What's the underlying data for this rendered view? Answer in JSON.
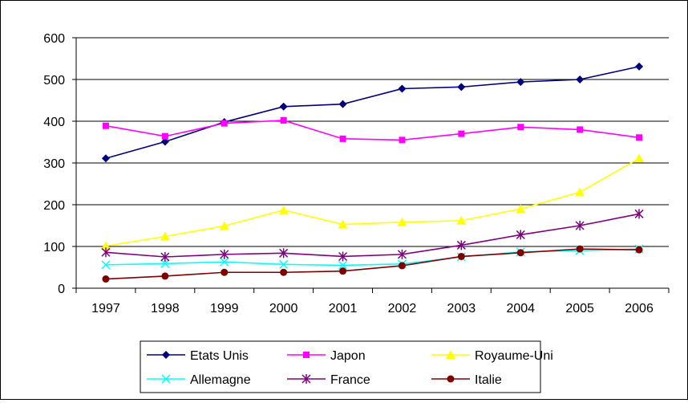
{
  "chart_data": {
    "type": "line",
    "title": "",
    "xlabel": "",
    "ylabel": "",
    "ylim": [
      0,
      600
    ],
    "yticks": [
      0,
      100,
      200,
      300,
      400,
      500,
      600
    ],
    "grid": true,
    "legend_position": "bottom",
    "categories": [
      "1997",
      "1998",
      "1999",
      "2000",
      "2001",
      "2002",
      "2003",
      "2004",
      "2005",
      "2006"
    ],
    "series": [
      {
        "name": "Etats Unis",
        "color": "#000080",
        "marker": "diamond",
        "values": [
          311,
          351,
          398,
          435,
          441,
          478,
          482,
          494,
          500,
          531
        ]
      },
      {
        "name": "Japon",
        "color": "#FF00FF",
        "marker": "square",
        "values": [
          389,
          364,
          395,
          402,
          358,
          355,
          370,
          386,
          380,
          361
        ]
      },
      {
        "name": "Royaume-Uni",
        "color": "#FFFF00",
        "marker": "triangle",
        "values": [
          101,
          124,
          149,
          187,
          153,
          158,
          162,
          190,
          230,
          311
        ]
      },
      {
        "name": "Allemagne",
        "color": "#00FFFF",
        "marker": "x",
        "values": [
          56,
          59,
          63,
          57,
          55,
          58,
          75,
          87,
          90,
          94
        ]
      },
      {
        "name": "France",
        "color": "#800080",
        "marker": "star",
        "values": [
          86,
          75,
          81,
          84,
          76,
          81,
          103,
          128,
          150,
          178
        ]
      },
      {
        "name": "Italie",
        "color": "#800000",
        "marker": "circle",
        "values": [
          22,
          29,
          38,
          38,
          41,
          54,
          76,
          85,
          94,
          92
        ]
      }
    ]
  }
}
